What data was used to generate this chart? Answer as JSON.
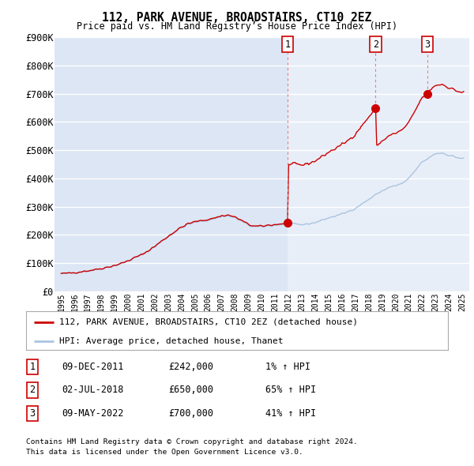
{
  "title": "112, PARK AVENUE, BROADSTAIRS, CT10 2EZ",
  "subtitle": "Price paid vs. HM Land Registry’s House Price Index (HPI)",
  "ylim": [
    0,
    900000
  ],
  "yticks": [
    0,
    100000,
    200000,
    300000,
    400000,
    500000,
    600000,
    700000,
    800000,
    900000
  ],
  "ytick_labels": [
    "£0",
    "£100K",
    "£200K",
    "£300K",
    "£400K",
    "£500K",
    "£600K",
    "£700K",
    "£800K",
    "£900K"
  ],
  "bg_color": "#dce6f5",
  "bg_color_owned": "#e8eef8",
  "grid_color": "#ffffff",
  "hpi_color": "#aac4e0",
  "price_color": "#cc0000",
  "purchases": [
    {
      "date_num": 2011.917,
      "price": 242000,
      "label": "1"
    },
    {
      "date_num": 2018.5,
      "price": 650000,
      "label": "2"
    },
    {
      "date_num": 2022.367,
      "price": 700000,
      "label": "3"
    }
  ],
  "table_rows": [
    [
      "1",
      "09-DEC-2011",
      "£242,000",
      "1% ↑ HPI"
    ],
    [
      "2",
      "02-JUL-2018",
      "£650,000",
      "65% ↑ HPI"
    ],
    [
      "3",
      "09-MAY-2022",
      "£700,000",
      "41% ↑ HPI"
    ]
  ],
  "legend_line1": "112, PARK AVENUE, BROADSTAIRS, CT10 2EZ (detached house)",
  "legend_line2": "HPI: Average price, detached house, Thanet",
  "footer1": "Contains HM Land Registry data © Crown copyright and database right 2024.",
  "footer2": "This data is licensed under the Open Government Licence v3.0."
}
